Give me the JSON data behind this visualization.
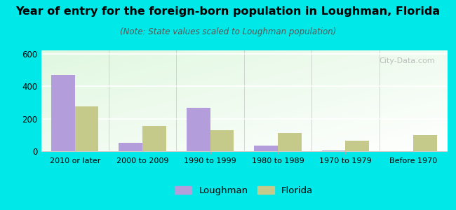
{
  "categories": [
    "2010 or later",
    "2000 to 2009",
    "1990 to 1999",
    "1980 to 1989",
    "1970 to 1979",
    "Before 1970"
  ],
  "loughman_values": [
    470,
    50,
    265,
    35,
    5,
    0
  ],
  "florida_values": [
    275,
    155,
    130,
    110,
    65,
    100
  ],
  "loughman_color": "#b39ddb",
  "florida_color": "#c5c98a",
  "title": "Year of entry for the foreign-born population in Loughman, Florida",
  "subtitle": "(Note: State values scaled to Loughman population)",
  "ylim": [
    0,
    620
  ],
  "yticks": [
    0,
    200,
    400,
    600
  ],
  "outer_bg": "#00e8e8",
  "title_fontsize": 11.5,
  "subtitle_fontsize": 8.5,
  "legend_loughman": "Loughman",
  "legend_florida": "Florida",
  "bar_width": 0.35,
  "watermark": "City-Data.com"
}
